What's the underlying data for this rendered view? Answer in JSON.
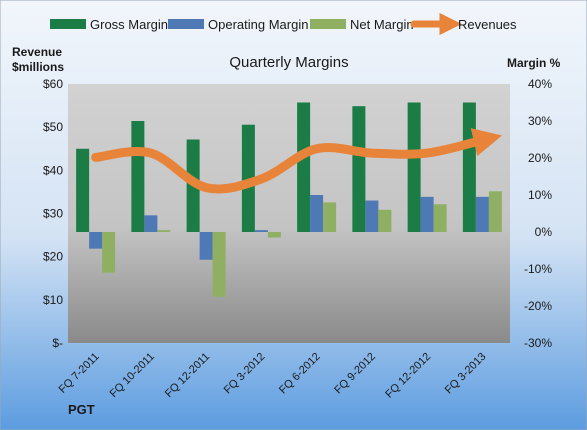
{
  "colors": {
    "gross": "#1b7d45",
    "operating": "#4f79b5",
    "net": "#8fb062",
    "revenues": "#e8843a"
  },
  "chart_data": {
    "type": "bar",
    "title": "Quarterly Margins",
    "left_axis_title_lines": [
      "Revenue",
      "$millions"
    ],
    "right_axis_title": "Margin %",
    "left_ticks": [
      "$-",
      "$10",
      "$20",
      "$30",
      "$40",
      "$50",
      "$60"
    ],
    "right_ticks": [
      "-30%",
      "-20%",
      "-10%",
      "0%",
      "10%",
      "20%",
      "30%",
      "40%"
    ],
    "left_ylim": [
      0,
      60
    ],
    "right_ylim": [
      -30,
      40
    ],
    "categories": [
      "FQ 7-2011",
      "FQ 10-2011",
      "FQ 12-2011",
      "FQ 3-2012",
      "FQ 6-2012",
      "FQ 9-2012",
      "FQ 12-2012",
      "FQ 3-2013"
    ],
    "series": [
      {
        "name": "Gross Margin",
        "axis": "right",
        "kind": "bar",
        "values": [
          22.5,
          30,
          25,
          29,
          35,
          34,
          35,
          35
        ]
      },
      {
        "name": "Operating Margin",
        "axis": "right",
        "kind": "bar",
        "values": [
          -4.5,
          4.5,
          -7.5,
          0.5,
          10,
          8.5,
          9.5,
          9.5
        ]
      },
      {
        "name": "Net Margin",
        "axis": "right",
        "kind": "bar",
        "values": [
          -11,
          0.5,
          -17.5,
          -1.5,
          8,
          6,
          7.5,
          11
        ]
      },
      {
        "name": "Revenues",
        "axis": "left",
        "kind": "line",
        "values": [
          43,
          44,
          36,
          38,
          45,
          44,
          44,
          47
        ]
      }
    ],
    "legend_position": "top",
    "grid": false,
    "source_label": "PGT"
  }
}
